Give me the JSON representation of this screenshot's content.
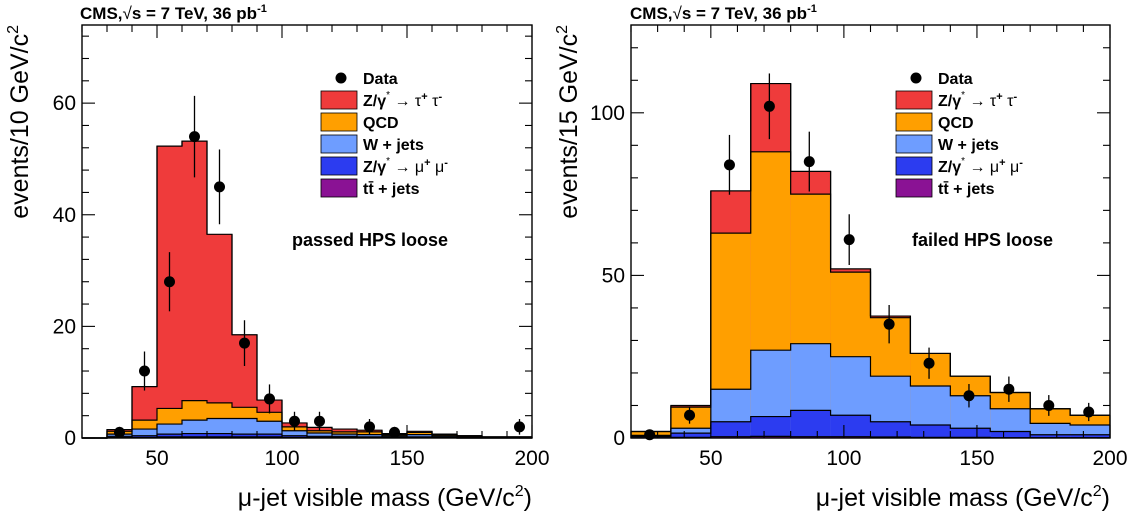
{
  "colors": {
    "ztautau": "#ef3b3b",
    "qcd": "#ff9f00",
    "wjets": "#6e9dff",
    "zmumu": "#2c3cf0",
    "ttbar": "#8a1294",
    "data": "#000000"
  },
  "chart_data": [
    {
      "type": "bar",
      "header": "CMS, √s = 7 TeV, 36 pb⁻¹",
      "header_parts": {
        "cms": "CMS,",
        "root": "√",
        "s_eq": "s = 7 TeV, 36 pb",
        "sup": "-1"
      },
      "annotation": "passed HPS loose",
      "xlabel": "μ-jet visible mass (GeV/c²)",
      "xlabel_parts": {
        "mu": "μ",
        "rest": "-jet visible mass (GeV/c",
        "sup": "2",
        "close": ")"
      },
      "ylabel": "events/10 GeV/c²",
      "ylabel_parts": {
        "main": "events/10 GeV/c",
        "sup": "2"
      },
      "xlim": [
        20,
        200
      ],
      "ylim": [
        0,
        74
      ],
      "xticks": [
        50,
        100,
        150,
        200
      ],
      "yticks": [
        0,
        20,
        40,
        60
      ],
      "bin_edges": [
        20,
        30,
        40,
        50,
        60,
        70,
        80,
        90,
        100,
        110,
        120,
        130,
        140,
        150,
        160,
        170,
        180,
        190,
        200
      ],
      "stack": [
        {
          "key": "ttbar",
          "values": [
            0,
            0.1,
            0.1,
            0.2,
            0.2,
            0.2,
            0.2,
            0.2,
            0.1,
            0.1,
            0.1,
            0.1,
            0.1,
            0.1,
            0.1,
            0,
            0,
            0
          ]
        },
        {
          "key": "zmumu",
          "values": [
            0,
            0.2,
            0.3,
            0.5,
            0.6,
            0.6,
            0.5,
            0.5,
            0.3,
            0.2,
            0.2,
            0.1,
            0.1,
            0.1,
            0.1,
            0,
            0,
            0
          ]
        },
        {
          "key": "wjets",
          "values": [
            0,
            0.4,
            1.2,
            1.8,
            2.4,
            2.7,
            2.8,
            2.3,
            0.9,
            0.6,
            0.4,
            0.4,
            0.2,
            0.4,
            0.2,
            0.2,
            0.1,
            0.1
          ]
        },
        {
          "key": "qcd",
          "values": [
            0,
            0.5,
            1.6,
            2.8,
            3.5,
            2.8,
            2.0,
            1.6,
            0.7,
            0.4,
            0.4,
            0.5,
            0.2,
            0.4,
            0.2,
            0.2,
            0.1,
            0.1
          ]
        },
        {
          "key": "ztautau",
          "values": [
            0,
            0.3,
            6.0,
            47.0,
            46.5,
            30.2,
            13.0,
            2.2,
            0.7,
            0.6,
            0.5,
            0.3,
            0.2,
            0.2,
            0.1,
            0,
            0,
            0
          ]
        }
      ],
      "data_points": [
        {
          "x": 35,
          "y": 1,
          "err": 1.0
        },
        {
          "x": 45,
          "y": 12,
          "err": 3.5
        },
        {
          "x": 55,
          "y": 28,
          "err": 5.3
        },
        {
          "x": 65,
          "y": 54,
          "err": 7.3
        },
        {
          "x": 75,
          "y": 45,
          "err": 6.7
        },
        {
          "x": 85,
          "y": 17,
          "err": 4.1
        },
        {
          "x": 95,
          "y": 7,
          "err": 2.6
        },
        {
          "x": 105,
          "y": 3,
          "err": 1.7
        },
        {
          "x": 115,
          "y": 3,
          "err": 1.7
        },
        {
          "x": 135,
          "y": 2,
          "err": 1.4
        },
        {
          "x": 145,
          "y": 1,
          "err": 1.0
        },
        {
          "x": 195,
          "y": 2,
          "err": 1.4
        }
      ],
      "legend": [
        {
          "key": "data",
          "label": "Data",
          "marker": true
        },
        {
          "key": "ztautau",
          "label_parts": {
            "a": "Z/γ",
            "star": "*",
            "arrow": " → τ",
            "plus": "+",
            "b": " τ",
            "minus": "-"
          }
        },
        {
          "key": "qcd",
          "label": "QCD"
        },
        {
          "key": "wjets",
          "label": "W + jets"
        },
        {
          "key": "zmumu",
          "label_parts": {
            "a": "Z/γ",
            "star": "*",
            "arrow": " → μ",
            "plus": "+",
            "b": " μ",
            "minus": "-"
          }
        },
        {
          "key": "ttbar",
          "label": "tt̄ + jets"
        }
      ]
    },
    {
      "type": "bar",
      "header": "CMS, √s = 7 TeV, 36 pb⁻¹",
      "header_parts": {
        "cms": "CMS,",
        "root": "√",
        "s_eq": "s = 7 TeV, 36 pb",
        "sup": "-1"
      },
      "annotation": "failed HPS loose",
      "xlabel": "μ-jet visible mass (GeV/c²)",
      "xlabel_parts": {
        "mu": "μ",
        "rest": "-jet visible mass (GeV/c",
        "sup": "2",
        "close": ")"
      },
      "ylabel": "events/15 GeV/c²",
      "ylabel_parts": {
        "main": "events/15 GeV/c",
        "sup": "2"
      },
      "xlim": [
        20,
        200
      ],
      "ylim": [
        0,
        127
      ],
      "xticks": [
        50,
        100,
        150,
        200
      ],
      "yticks": [
        0,
        50,
        100
      ],
      "bin_edges": [
        20,
        35,
        50,
        65,
        80,
        95,
        110,
        125,
        140,
        155,
        170,
        185,
        200
      ],
      "stack": [
        {
          "key": "ttbar",
          "values": [
            0.1,
            0.2,
            0.4,
            0.5,
            0.4,
            0.4,
            0.3,
            0.2,
            0.2,
            0.1,
            0.1,
            0.1
          ]
        },
        {
          "key": "zmumu",
          "values": [
            0.4,
            1.3,
            4.6,
            6.1,
            8.1,
            6.6,
            4.7,
            3.8,
            2.8,
            1.9,
            0.9,
            0.9
          ]
        },
        {
          "key": "wjets",
          "values": [
            0.3,
            1.5,
            10.0,
            20.4,
            20.5,
            18.0,
            14.0,
            12.0,
            10.0,
            7.0,
            3.5,
            3.0
          ]
        },
        {
          "key": "qcd",
          "values": [
            1.2,
            6.5,
            48.0,
            61.0,
            46.0,
            26.0,
            18.0,
            10.0,
            6.0,
            5.0,
            4.5,
            3.0
          ]
        },
        {
          "key": "ztautau",
          "values": [
            0,
            0.5,
            13.0,
            21.0,
            7.0,
            1.0,
            0.5,
            0,
            0,
            0,
            0,
            0
          ]
        }
      ],
      "data_points": [
        {
          "x": 27,
          "y": 1,
          "err": 1.0
        },
        {
          "x": 42,
          "y": 7,
          "err": 2.6
        },
        {
          "x": 57,
          "y": 84,
          "err": 9.2
        },
        {
          "x": 72,
          "y": 102,
          "err": 10.1
        },
        {
          "x": 87,
          "y": 85,
          "err": 9.2
        },
        {
          "x": 102,
          "y": 61,
          "err": 7.8
        },
        {
          "x": 117,
          "y": 35,
          "err": 5.9
        },
        {
          "x": 132,
          "y": 23,
          "err": 4.8
        },
        {
          "x": 147,
          "y": 13,
          "err": 3.6
        },
        {
          "x": 162,
          "y": 15,
          "err": 3.9
        },
        {
          "x": 177,
          "y": 10,
          "err": 3.2
        },
        {
          "x": 192,
          "y": 8,
          "err": 2.8
        }
      ],
      "legend": [
        {
          "key": "data",
          "label": "Data",
          "marker": true
        },
        {
          "key": "ztautau",
          "label_parts": {
            "a": "Z/γ",
            "star": "*",
            "arrow": " → τ",
            "plus": "+",
            "b": " τ",
            "minus": "-"
          }
        },
        {
          "key": "qcd",
          "label": "QCD"
        },
        {
          "key": "wjets",
          "label": "W + jets"
        },
        {
          "key": "zmumu",
          "label_parts": {
            "a": "Z/γ",
            "star": "*",
            "arrow": " → μ",
            "plus": "+",
            "b": " μ",
            "minus": "-"
          }
        },
        {
          "key": "ttbar",
          "label": "tt̄ + jets"
        }
      ]
    }
  ]
}
